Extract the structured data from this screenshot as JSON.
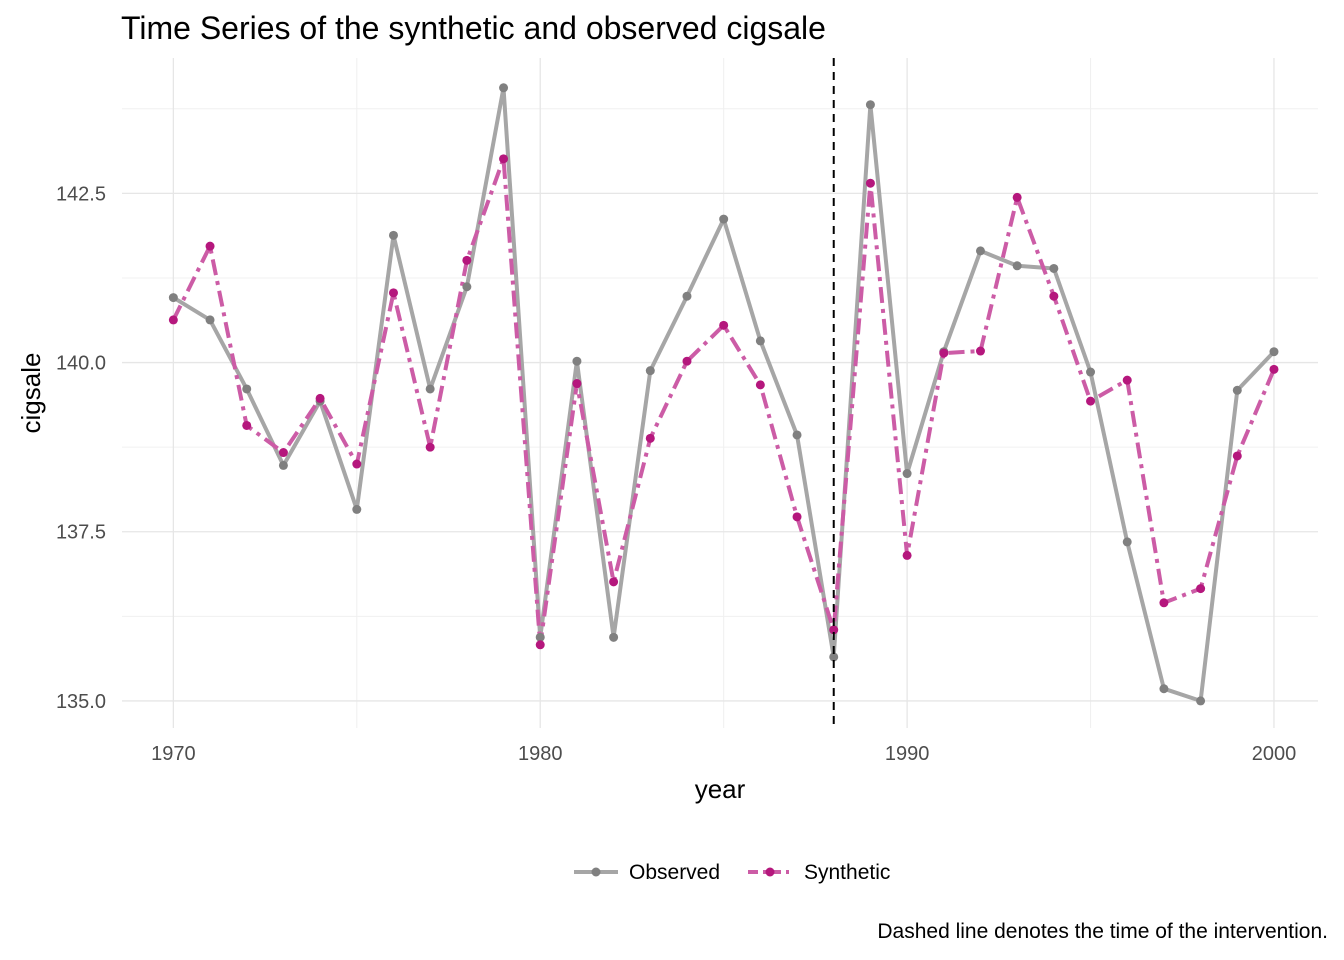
{
  "chart_data": {
    "type": "line",
    "title": "Time Series of the synthetic and observed cigsale",
    "xlabel": "year",
    "ylabel": "cigsale",
    "caption": "Dashed line denotes the time of the intervention.",
    "xlim": [
      1968.6,
      2001.2
    ],
    "ylim": [
      134.6,
      144.5
    ],
    "x_ticks": [
      1970,
      1980,
      1990,
      2000
    ],
    "x_tick_labels": [
      "1970",
      "1980",
      "1990",
      "2000"
    ],
    "y_ticks": [
      135.0,
      137.5,
      140.0,
      142.5
    ],
    "y_tick_labels": [
      "135.0",
      "137.5",
      "140.0",
      "142.5"
    ],
    "grid": true,
    "legend_position": "bottom",
    "intervention_year": 1988,
    "x": [
      1970,
      1971,
      1972,
      1973,
      1974,
      1975,
      1976,
      1977,
      1978,
      1979,
      1980,
      1981,
      1982,
      1983,
      1984,
      1985,
      1986,
      1987,
      1988,
      1989,
      1990,
      1991,
      1992,
      1993,
      1994,
      1995,
      1996,
      1997,
      1998,
      1999,
      2000
    ],
    "series": [
      {
        "name": "Observed",
        "color": "#808080",
        "line_color": "#a6a6a6",
        "line_style": "solid",
        "values": [
          140.96,
          140.63,
          139.61,
          138.48,
          139.43,
          137.83,
          141.88,
          139.61,
          141.12,
          144.06,
          135.94,
          140.02,
          135.94,
          139.88,
          140.98,
          142.12,
          140.32,
          138.93,
          135.65,
          143.81,
          138.36,
          140.16,
          141.65,
          141.43,
          141.39,
          139.86,
          137.35,
          135.18,
          135.0,
          139.59,
          140.16
        ]
      },
      {
        "name": "Synthetic",
        "color": "#b5177d",
        "line_color": "#cc5ca6",
        "line_style": "dashed",
        "values": [
          140.63,
          141.72,
          139.07,
          138.67,
          139.47,
          138.5,
          141.03,
          138.75,
          141.51,
          143.01,
          135.83,
          139.69,
          136.76,
          138.88,
          140.02,
          140.55,
          139.67,
          137.72,
          136.05,
          142.65,
          137.15,
          140.14,
          140.17,
          142.44,
          140.98,
          139.43,
          139.74,
          136.45,
          136.66,
          138.62,
          139.9
        ]
      }
    ]
  }
}
